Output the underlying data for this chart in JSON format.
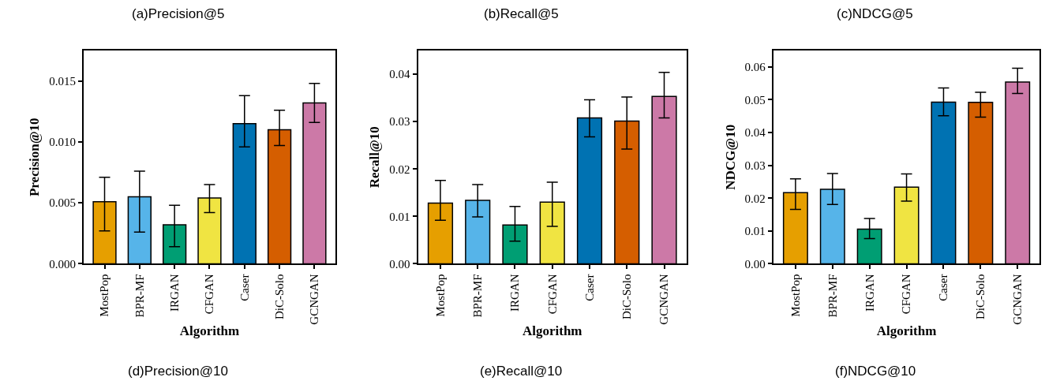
{
  "chart_data": [
    {
      "type": "bar",
      "title": "(a)Precision@5",
      "xlabel": "Algorithm",
      "ylabel": "Precision@10",
      "categories": [
        "MostPop",
        "BPR-MF",
        "IRGAN",
        "CFGAN",
        "Caser",
        "DiC-Solo",
        "GCNGAN"
      ],
      "values": [
        0.0051,
        0.0055,
        0.0032,
        0.0054,
        0.0115,
        0.011,
        0.0132
      ],
      "errors": [
        [
          0.0027,
          0.0071
        ],
        [
          0.0026,
          0.0076
        ],
        [
          0.0014,
          0.0048
        ],
        [
          0.0042,
          0.0065
        ],
        [
          0.0096,
          0.0138
        ],
        [
          0.0097,
          0.0126
        ],
        [
          0.0116,
          0.0148
        ]
      ],
      "colors": [
        "#e69f00",
        "#56b4e9",
        "#009e73",
        "#f0e442",
        "#0072b2",
        "#d55e00",
        "#cc79a7"
      ],
      "ylim": [
        0,
        0.0175
      ],
      "yticks": [
        {
          "value": 0,
          "label": "0.000"
        },
        {
          "value": 0.005,
          "label": "0.005"
        },
        {
          "value": 0.01,
          "label": "0.010"
        },
        {
          "value": 0.015,
          "label": "0.015"
        }
      ],
      "annotations": [
        "(d)Precision@10"
      ]
    },
    {
      "type": "bar",
      "title": "(b)Recall@5",
      "xlabel": "Algorithm",
      "ylabel": "Recall@10",
      "categories": [
        "MostPop",
        "BPR-MF",
        "IRGAN",
        "CFGAN",
        "Caser",
        "DiC-Solo",
        "GCNGAN"
      ],
      "values": [
        0.0128,
        0.0134,
        0.0082,
        0.013,
        0.0308,
        0.0301,
        0.0353
      ],
      "errors": [
        [
          0.0092,
          0.0176
        ],
        [
          0.0099,
          0.0167
        ],
        [
          0.0048,
          0.0121
        ],
        [
          0.0079,
          0.0172
        ],
        [
          0.0268,
          0.0346
        ],
        [
          0.0242,
          0.0352
        ],
        [
          0.0308,
          0.0404
        ]
      ],
      "colors": [
        "#e69f00",
        "#56b4e9",
        "#009e73",
        "#f0e442",
        "#0072b2",
        "#d55e00",
        "#cc79a7"
      ],
      "ylim": [
        0,
        0.045
      ],
      "yticks": [
        {
          "value": 0,
          "label": "0.00"
        },
        {
          "value": 0.01,
          "label": "0.01"
        },
        {
          "value": 0.02,
          "label": "0.02"
        },
        {
          "value": 0.03,
          "label": "0.03"
        },
        {
          "value": 0.04,
          "label": "0.04"
        }
      ],
      "annotations": [
        "(e)Recall@10"
      ]
    },
    {
      "type": "bar",
      "title": "(c)NDCG@5",
      "xlabel": "Algorithm",
      "ylabel": "NDCG@10",
      "categories": [
        "MostPop",
        "BPR-MF",
        "IRGAN",
        "CFGAN",
        "Caser",
        "DiC-Solo",
        "GCNGAN"
      ],
      "values": [
        0.0217,
        0.0227,
        0.0106,
        0.0234,
        0.0493,
        0.0492,
        0.0554
      ],
      "errors": [
        [
          0.0166,
          0.0259
        ],
        [
          0.0181,
          0.0275
        ],
        [
          0.0077,
          0.0138
        ],
        [
          0.0191,
          0.0274
        ],
        [
          0.0451,
          0.0536
        ],
        [
          0.0447,
          0.0523
        ],
        [
          0.0519,
          0.0596
        ]
      ],
      "colors": [
        "#e69f00",
        "#56b4e9",
        "#009e73",
        "#f0e442",
        "#0072b2",
        "#d55e00",
        "#cc79a7"
      ],
      "ylim": [
        0,
        0.065
      ],
      "yticks": [
        {
          "value": 0,
          "label": "0.00"
        },
        {
          "value": 0.01,
          "label": "0.01"
        },
        {
          "value": 0.02,
          "label": "0.02"
        },
        {
          "value": 0.03,
          "label": "0.03"
        },
        {
          "value": 0.04,
          "label": "0.04"
        },
        {
          "value": 0.05,
          "label": "0.05"
        },
        {
          "value": 0.06,
          "label": "0.06"
        }
      ],
      "annotations": [
        "(f)NDCG@10"
      ]
    }
  ]
}
